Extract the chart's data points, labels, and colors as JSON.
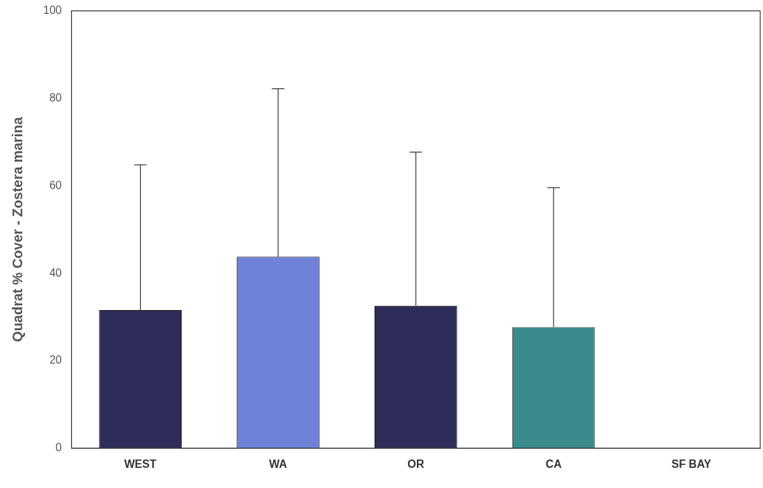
{
  "chart_data": {
    "type": "bar",
    "ylabel": "Quadrat % Cover - Zostera marina",
    "categories": [
      "WEST",
      "WA",
      "OR",
      "CA",
      "SF BAY"
    ],
    "values": [
      31.6,
      43.8,
      32.6,
      27.7,
      0
    ],
    "colors": [
      "#2e2d5a",
      "#6f82d8",
      "#2e2d5a",
      "#3a8c8c",
      "#2e2d5a"
    ],
    "errors": [
      [
        31.6,
        64.8
      ],
      [
        43.8,
        82.2
      ],
      [
        32.6,
        67.7
      ],
      [
        27.7,
        59.6
      ],
      null
    ],
    "ylim": [
      0,
      100
    ],
    "yticks": [
      0,
      20,
      40,
      60,
      80,
      100
    ],
    "grid": false,
    "legend": false
  }
}
